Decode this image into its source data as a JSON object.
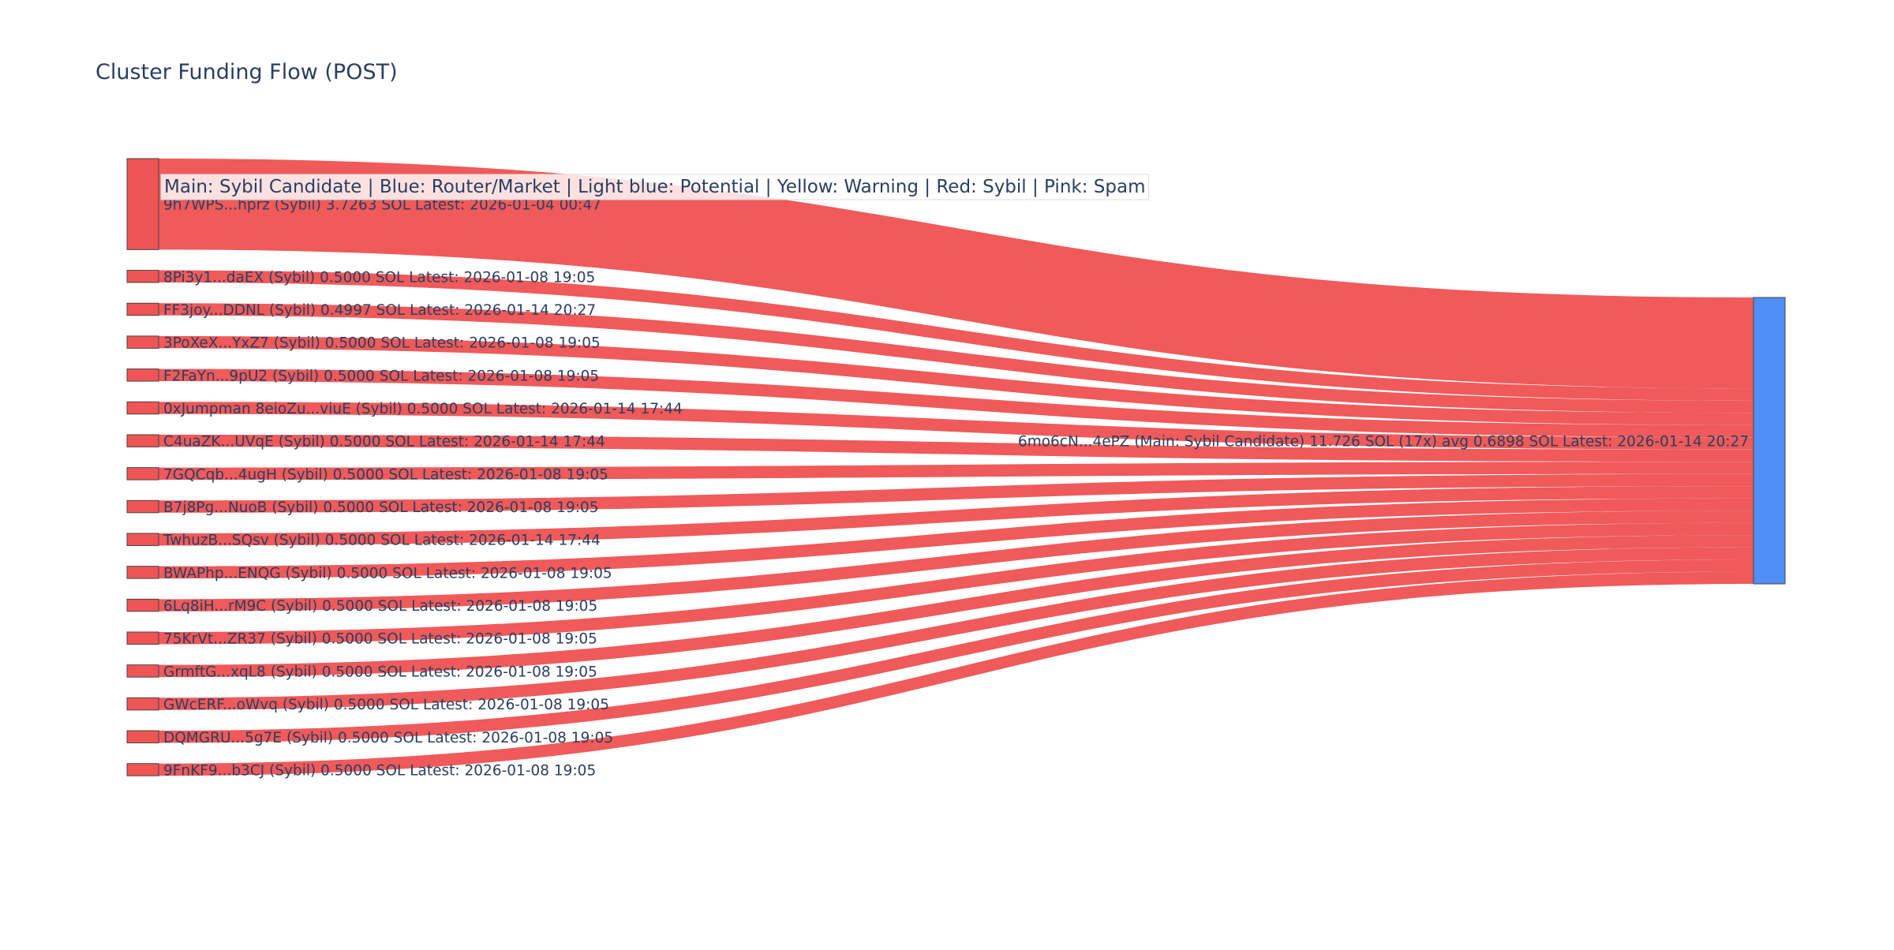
{
  "title": "Cluster Funding Flow (POST)",
  "legend": "Main: Sybil Candidate  |  Blue: Router/Market | Light blue: Potential | Yellow: Warning | Red: Sybil | Pink: Spam",
  "colors": {
    "sybil": "#ef5555",
    "main": "#4f8ff7",
    "node_stroke": "#444444",
    "text": "#2a3f5f",
    "background": "#ffffff"
  },
  "chart_data": {
    "type": "sankey",
    "title": "Cluster Funding Flow (POST)",
    "target": {
      "label": "6mo6cN...4ePZ (Main: Sybil Candidate) 11.726 SOL (17x) avg 0.6898 SOL Latest: 2026-01-14 20:27",
      "role": "Main: Sybil Candidate",
      "total": 11.726,
      "count": 17,
      "avg": 0.6898
    },
    "sources": [
      {
        "label": "9h7WPS...hprz (Sybil) 3.7263 SOL Latest: 2026-01-04 00:47",
        "value": 3.7263
      },
      {
        "label": "8Pi3y1...daEX (Sybil) 0.5000 SOL Latest: 2026-01-08 19:05",
        "value": 0.5
      },
      {
        "label": "FF3joy...DDNL (Sybil) 0.4997 SOL Latest: 2026-01-14 20:27",
        "value": 0.4997
      },
      {
        "label": "3PoXeX...YxZ7 (Sybil) 0.5000 SOL Latest: 2026-01-08 19:05",
        "value": 0.5
      },
      {
        "label": "F2FaYn...9pU2 (Sybil) 0.5000 SOL Latest: 2026-01-08 19:05",
        "value": 0.5
      },
      {
        "label": "0xJumpman 8eioZu...viuE (Sybil) 0.5000 SOL Latest: 2026-01-14 17:44",
        "value": 0.5
      },
      {
        "label": "C4uaZK...UVqE (Sybil) 0.5000 SOL Latest: 2026-01-14 17:44",
        "value": 0.5
      },
      {
        "label": "7GQCqb...4ugH (Sybil) 0.5000 SOL Latest: 2026-01-08 19:05",
        "value": 0.5
      },
      {
        "label": "B7j8Pg...NuoB (Sybil) 0.5000 SOL Latest: 2026-01-08 19:05",
        "value": 0.5
      },
      {
        "label": "TwhuzB...SQsv (Sybil) 0.5000 SOL Latest: 2026-01-14 17:44",
        "value": 0.5
      },
      {
        "label": "BWAPhp...ENQG (Sybil) 0.5000 SOL Latest: 2026-01-08 19:05",
        "value": 0.5
      },
      {
        "label": "6Lq8iH...rM9C (Sybil) 0.5000 SOL Latest: 2026-01-08 19:05",
        "value": 0.5
      },
      {
        "label": "75KrVt...ZR37 (Sybil) 0.5000 SOL Latest: 2026-01-08 19:05",
        "value": 0.5
      },
      {
        "label": "GrmftG...xqL8 (Sybil) 0.5000 SOL Latest: 2026-01-08 19:05",
        "value": 0.5
      },
      {
        "label": "GWcERF...oWvq (Sybil) 0.5000 SOL Latest: 2026-01-08 19:05",
        "value": 0.5
      },
      {
        "label": "DQMGRU...5g7E (Sybil) 0.5000 SOL Latest: 2026-01-08 19:05",
        "value": 0.5
      },
      {
        "label": "9FnKF9...b3CJ (Sybil) 0.5000 SOL Latest: 2026-01-08 19:05",
        "value": 0.5
      }
    ]
  }
}
